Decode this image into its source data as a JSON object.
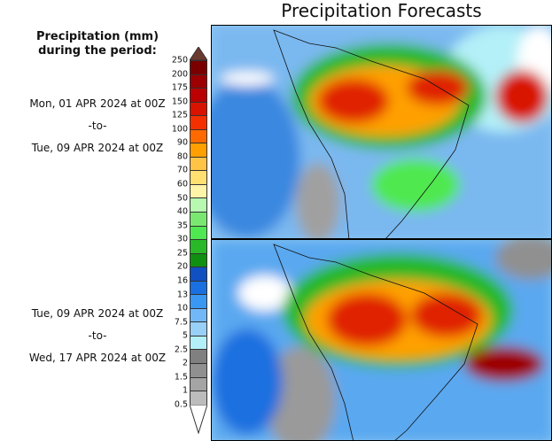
{
  "title": "Precipitation Forecasts",
  "legend": {
    "title_line1": "Precipitation (mm)",
    "title_line2": "during the period:",
    "ticks": [
      "250",
      "200",
      "175",
      "150",
      "125",
      "100",
      "90",
      "80",
      "70",
      "60",
      "50",
      "40",
      "35",
      "30",
      "25",
      "20",
      "16",
      "13",
      "10",
      "7.5",
      "5",
      "2.5",
      "2",
      "1.5",
      "1",
      "0.5"
    ],
    "colors": [
      "#7a0000",
      "#9c0000",
      "#ba0000",
      "#d81400",
      "#f53000",
      "#ff6a00",
      "#ffa000",
      "#ffc445",
      "#ffe070",
      "#fff4a8",
      "#b8f8b0",
      "#7ae870",
      "#50e850",
      "#28b828",
      "#109010",
      "#1050c0",
      "#1a70e0",
      "#3a98f2",
      "#72b8f8",
      "#98d0f8",
      "#b4f0f8",
      "#808080",
      "#909090",
      "#a4a4a4",
      "#bcbcbc"
    ],
    "over_color": "#6b3a2e",
    "under_color": "#ffffff"
  },
  "periods": [
    {
      "start": "Mon, 01 APR 2024 at 00Z",
      "sep": "-to-",
      "end": "Tue, 09 APR 2024 at 00Z"
    },
    {
      "start": "Tue, 09 APR 2024 at 00Z",
      "sep": "-to-",
      "end": "Wed, 17 APR 2024 at 00Z"
    }
  ]
}
